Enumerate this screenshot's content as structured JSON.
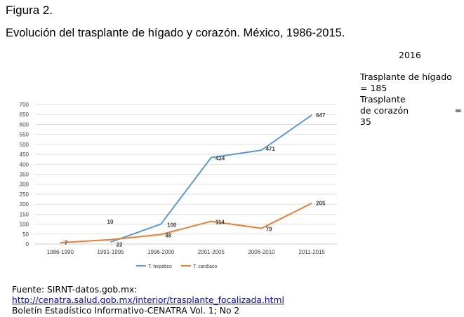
{
  "figure_label": "Figura 2.",
  "figure_title": "Evolución del trasplante de hígado y corazón. México, 1986-2015.",
  "note": {
    "year": "2016",
    "liver_line1": "Trasplante de hígado",
    "liver_line2": "= 185",
    "heart_line1": "Trasplante",
    "heart_line2_label": "de corazón",
    "heart_line2_eq": "=",
    "heart_line3": "35"
  },
  "footer": {
    "source": "Fuente: SIRNT-datos.gob.mx:",
    "link": "http://cenatra.salud.gob.mx/interior/trasplante_focalizada.html",
    "bulletin": "Boletín Estadístico Informativo-CENATRA Vol. 1; No 2"
  },
  "colors": {
    "liver": "#5b9bd5",
    "heart": "#ed7d31",
    "grid": "#d9d9d9",
    "tick_text": "#404040"
  },
  "chart_data": {
    "type": "line",
    "categories": [
      "1986-1990",
      "1991-1995",
      "1996-2000",
      "2001-2005",
      "2006-2010",
      "2011-2015"
    ],
    "series": [
      {
        "name": "T. hepático",
        "values": [
          null,
          10,
          100,
          434,
          471,
          647
        ],
        "color": "#5b9bd5"
      },
      {
        "name": "T. cardíaco",
        "values": [
          7,
          22,
          48,
          114,
          79,
          205
        ],
        "color": "#ed7d31"
      }
    ],
    "ylim": [
      0,
      700
    ],
    "yticks": [
      0,
      50,
      100,
      150,
      200,
      250,
      300,
      350,
      400,
      450,
      500,
      550,
      600,
      650,
      700
    ],
    "grid": true,
    "legend_position": "bottom"
  }
}
